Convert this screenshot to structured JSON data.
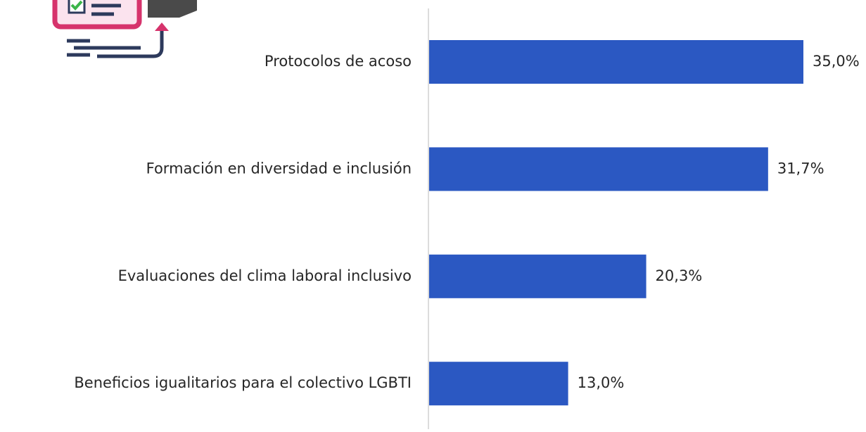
{
  "chart_data": {
    "type": "bar",
    "orientation": "horizontal",
    "categories": [
      "Protocolos de acoso",
      "Formación en diversidad e inclusión",
      "Evaluaciones del clima laboral inclusivo",
      "Beneficios igualitarios para el colectivo LGBTI"
    ],
    "values": [
      35.0,
      31.7,
      20.3,
      13.0
    ],
    "value_labels": [
      "35,0%",
      "31,7%",
      "20,3%",
      "13,0%"
    ],
    "color": "#2b58c2"
  }
}
